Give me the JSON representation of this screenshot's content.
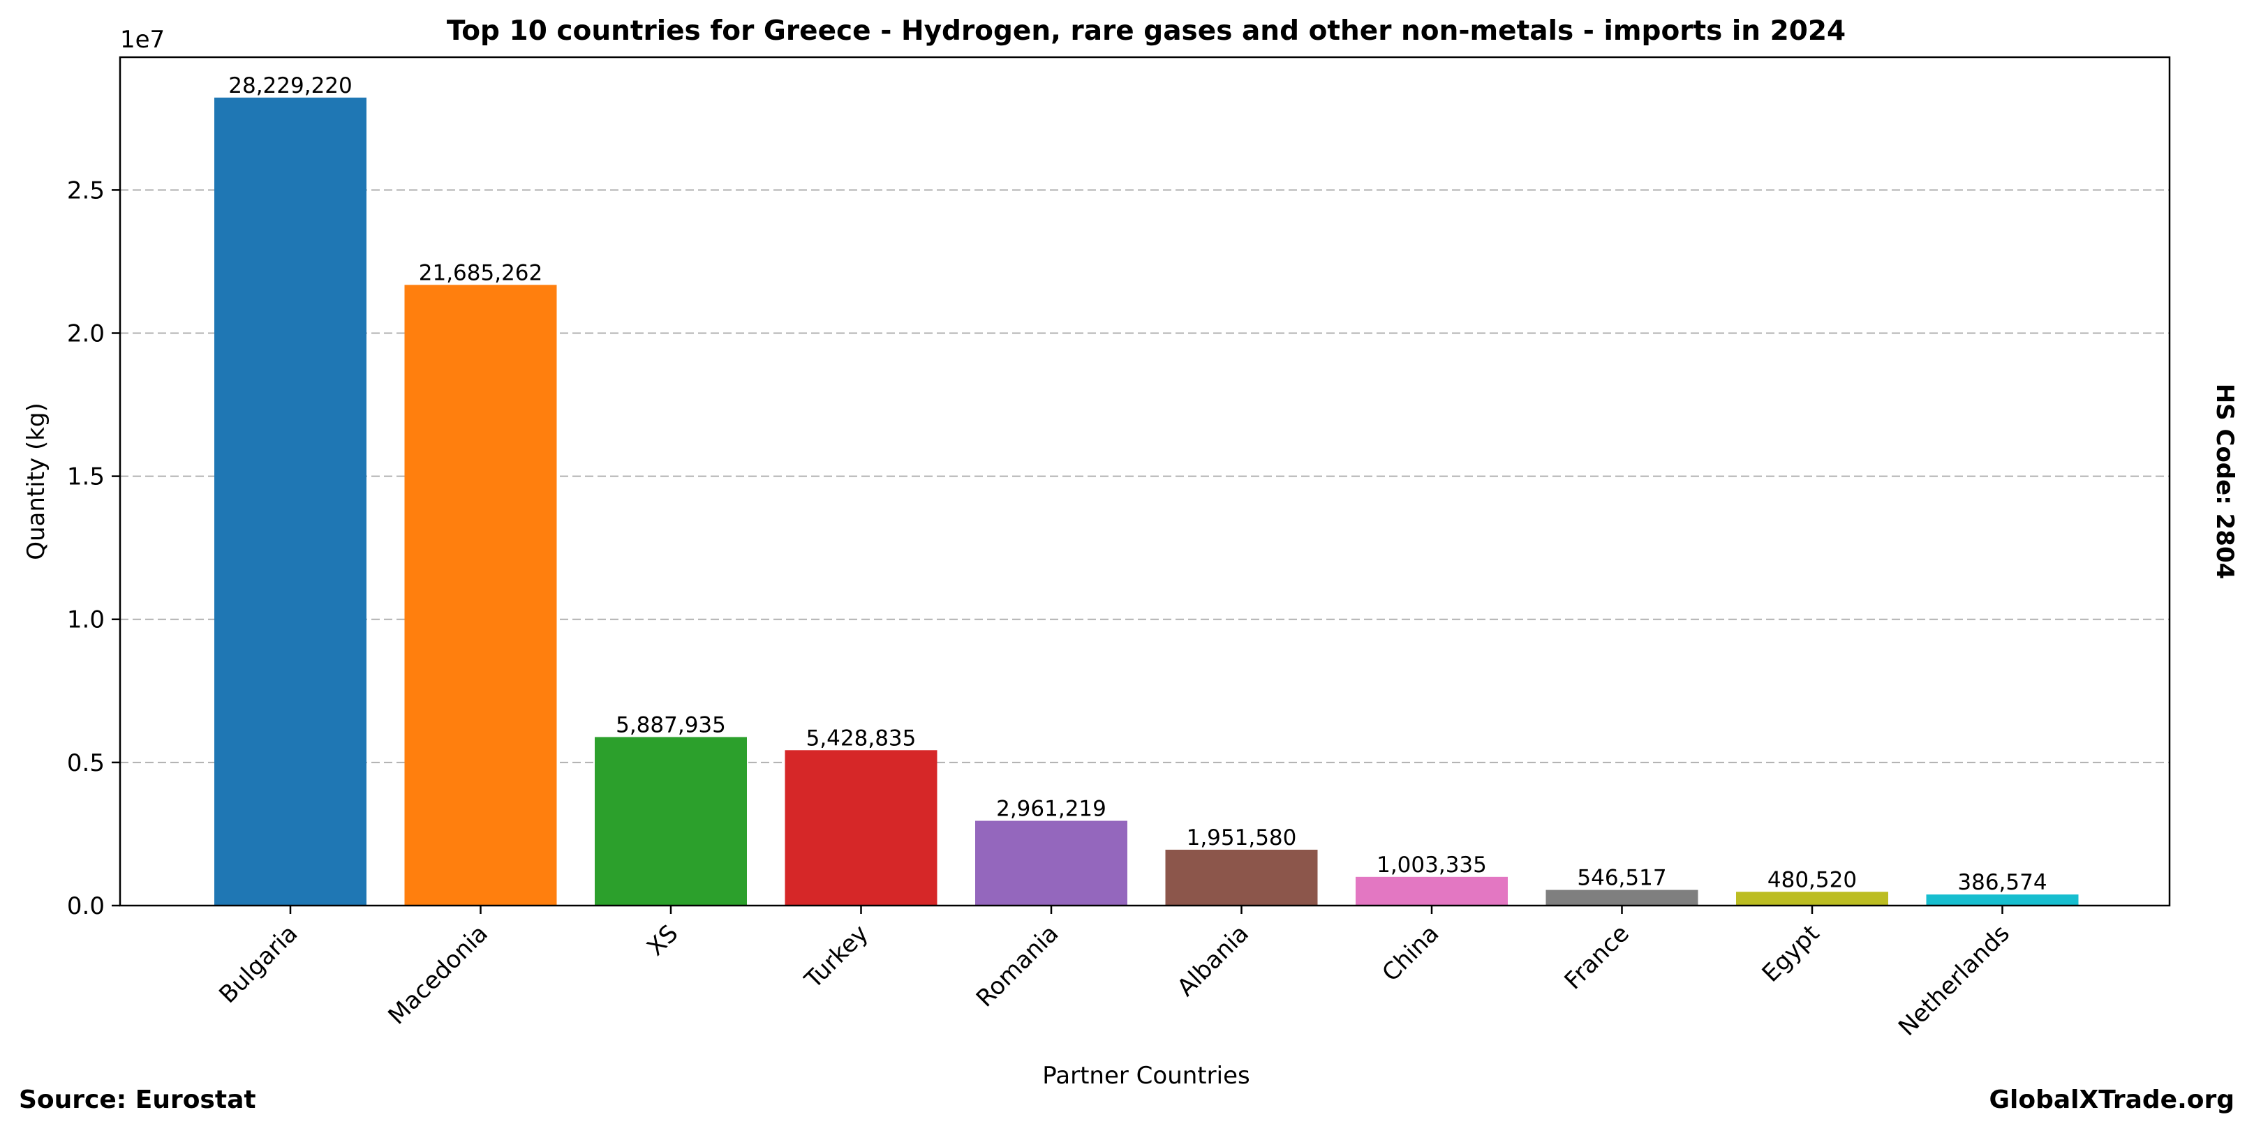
{
  "chart_data": {
    "type": "bar",
    "title": "Top 10 countries for Greece - Hydrogen, rare gases and other non-metals - imports in 2024",
    "xlabel": "Partner Countries",
    "ylabel": "Quantity (kg)",
    "y_scale_label": "1e7",
    "ylim": [
      0,
      29640000
    ],
    "y_ticks": [
      0,
      5000000,
      10000000,
      15000000,
      20000000,
      25000000
    ],
    "y_tick_labels": [
      "0.0",
      "0.5",
      "1.0",
      "1.5",
      "2.0",
      "2.5"
    ],
    "grid": "horizontal dashed",
    "categories": [
      "Bulgaria",
      "Macedonia",
      "XS",
      "Turkey",
      "Romania",
      "Albania",
      "China",
      "France",
      "Egypt",
      "Netherlands"
    ],
    "values": [
      28229220,
      21685262,
      5887935,
      5428835,
      2961219,
      1951580,
      1003335,
      546517,
      480520,
      386574
    ],
    "value_labels": [
      "28,229,220",
      "21,685,262",
      "5,887,935",
      "5,428,835",
      "2,961,219",
      "1,951,580",
      "1,003,335",
      "546,517",
      "480,520",
      "386,574"
    ],
    "colors": [
      "#1f77b4",
      "#ff7f0e",
      "#2ca02c",
      "#d62728",
      "#9467bd",
      "#8c564b",
      "#e377c2",
      "#7f7f7f",
      "#bcbd22",
      "#17becf"
    ]
  },
  "footer": {
    "source": "Source: Eurostat",
    "brand": "GlobalXTrade.org"
  },
  "side_note": "HS Code: 2804"
}
